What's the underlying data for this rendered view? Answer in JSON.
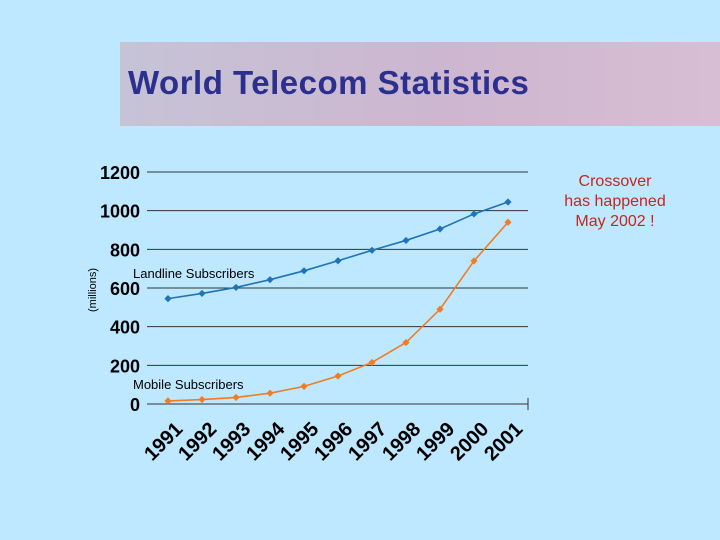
{
  "title": "World Telecom Statistics",
  "annotation": [
    "Crossover",
    "has happened",
    "May 2002 !"
  ],
  "colors": {
    "background": "#bde8ff",
    "title": "#2b2f8e",
    "annotation": "#c8251c",
    "landline": "#1f73b7",
    "mobile": "#f07c23"
  },
  "chart_data": {
    "type": "line",
    "title": "",
    "xlabel": "",
    "ylabel": "(millions)",
    "ylim": [
      0,
      1200
    ],
    "yticks": [
      0,
      200,
      400,
      600,
      800,
      1000,
      1200
    ],
    "grid": true,
    "x": [
      "1991",
      "1992",
      "1993",
      "1994",
      "1995",
      "1996",
      "1997",
      "1998",
      "1999",
      "2000",
      "2001"
    ],
    "series": [
      {
        "name": "Landline Subscribers",
        "color": "#1f73b7",
        "values": [
          545,
          572,
          603,
          643,
          689,
          741,
          795,
          846,
          905,
          983,
          1045
        ]
      },
      {
        "name": "Mobile Subscribers",
        "color": "#f07c23",
        "values": [
          16,
          23,
          34,
          56,
          91,
          145,
          215,
          318,
          490,
          740,
          940
        ]
      }
    ]
  }
}
